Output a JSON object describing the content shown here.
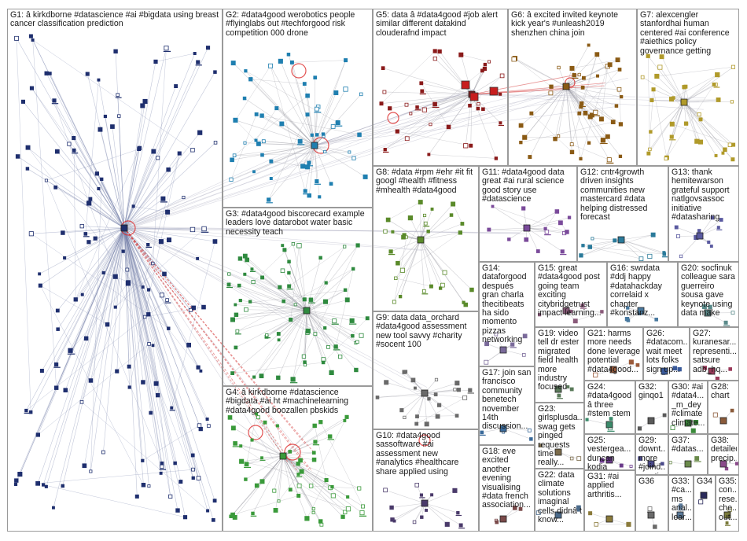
{
  "title": "",
  "groups": [
    {
      "id": "G1",
      "text": "G1: â kirkdborne #datascience #ai #bigdata using breast cancer classification prediction"
    },
    {
      "id": "G2",
      "text": "G2: #data4good werobotics people #flyinglabs out #techforgood risk competition 000 drone"
    },
    {
      "id": "G3",
      "text": "G3: #data4good biscorecard example leaders love datarobot water basic necessity teach"
    },
    {
      "id": "G4",
      "text": "G4: â kirkdborne #datascience #bigdata #ai ht #machinelearning #data4good boozallen pbskids"
    },
    {
      "id": "G5",
      "text": "G5: data â #data4good #job alert similar different datakind clouderafnd impact"
    },
    {
      "id": "G6",
      "text": "G6: â excited invited keynote kick year's #unleash2019 shenzhen china join"
    },
    {
      "id": "G7",
      "text": "G7: alexcengler stanfordhai human centered #ai conference #aiethics policy governance getting"
    },
    {
      "id": "G8",
      "text": "G8: #data #rpm #ehr #it fit googl #health #fitness #mhealth #data4good"
    },
    {
      "id": "G9",
      "text": "G9: data data_orchard #data4good assessment new tool savvy #charity #socent 100"
    },
    {
      "id": "G10",
      "text": "G10: #data4good sassoftware #ai assessment new #analytics #healthcare share applied using"
    },
    {
      "id": "G11",
      "text": "G11: #data4good data great #ai rural science good story use #datascience"
    },
    {
      "id": "G12",
      "text": "G12: cntr4growth driven insights communities new mastercard #data helping distressed forecast"
    },
    {
      "id": "G13",
      "text": "G13: thank hemitewarson grateful support natlgovsassoc initiative #datasharing"
    },
    {
      "id": "G14",
      "text": "G14: dataforgood después gran charla thecitibeats ha sido momento pizzas networking"
    },
    {
      "id": "G15",
      "text": "G15: great #data4good post going team exciting citybridgetrust impact learning..."
    },
    {
      "id": "G16",
      "text": "G16: swrdata #ddj happy #datahackday correlaid x chapter #konstanz..."
    },
    {
      "id": "G17",
      "text": "G17: join san francisco community benetech november 14th discussion..."
    },
    {
      "id": "G18",
      "text": "G18: eve excited another evening visualising #data french association..."
    },
    {
      "id": "G19",
      "text": "G19: video tell dr ester migrated field health more industry focused"
    },
    {
      "id": "G20",
      "text": "G20: socfinuk colleague sara guerreiro sousa gave keynote using data make"
    },
    {
      "id": "G21",
      "text": "G21: harms more needs done leverage potential #data4good..."
    },
    {
      "id": "G22",
      "text": "G22: data climate solutions imaginal cells didnâ t know..."
    },
    {
      "id": "G23",
      "text": "G23: girlsplusda... swag gets pinged requests time really..."
    },
    {
      "id": "G24",
      "text": "G24: #data4good â three #stem stem"
    },
    {
      "id": "G25",
      "text": "G25: vestergea... duncan kodia athinya..."
    },
    {
      "id": "G26",
      "text": "G26: #datacom... wait meet lots folks sign up..."
    },
    {
      "id": "G27",
      "text": "G27: kuranesar... representi... satsure adb_hq..."
    },
    {
      "id": "G28",
      "text": "G28: chart"
    },
    {
      "id": "G29",
      "text": "G29: downt... more #joind... mentio..."
    },
    {
      "id": "G30",
      "text": "G30: #ai #data4... _m_dey #climate climate..."
    },
    {
      "id": "G31",
      "text": "G31: #ai applied arthritis..."
    },
    {
      "id": "G32",
      "text": "G32: ginqo1"
    },
    {
      "id": "G33",
      "text": "G33: #ca... ms anal... lear..."
    },
    {
      "id": "G34",
      "text": "G34"
    },
    {
      "id": "G35",
      "text": "G35: con... rese... che... out..."
    },
    {
      "id": "G36",
      "text": "G36"
    },
    {
      "id": "G37",
      "text": "G37: #datas..."
    },
    {
      "id": "G38",
      "text": "G38: detailed precip..."
    }
  ]
}
